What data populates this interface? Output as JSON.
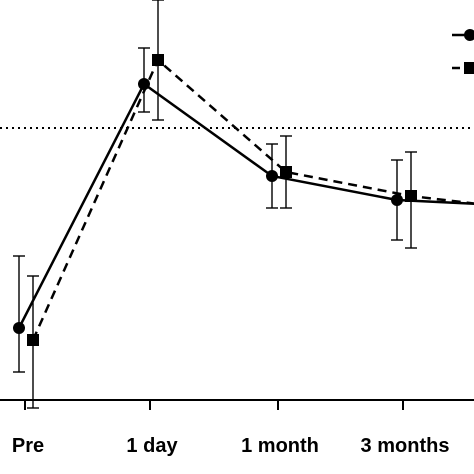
{
  "chart_data": {
    "type": "line",
    "title": "",
    "xlabel": "",
    "ylabel": "",
    "categories": [
      "Pre",
      "1 day",
      "1 month",
      "3 months"
    ],
    "ylim": [
      0,
      100
    ],
    "reference_line": {
      "y": 68,
      "style": "dotted"
    },
    "legend": {
      "placement": "top-right",
      "clipped": true
    },
    "series": [
      {
        "marker": "circle",
        "line_style": "solid",
        "color": "#000000",
        "values": [
          18,
          79,
          56,
          50
        ],
        "error": [
          [
            -11,
            18
          ],
          [
            -7,
            9
          ],
          [
            -8,
            8
          ],
          [
            -10,
            10
          ]
        ],
        "continues_right_value": 49
      },
      {
        "marker": "square",
        "line_style": "dashed",
        "color": "#000000",
        "values": [
          15,
          85,
          57,
          51
        ],
        "error": [
          [
            -17,
            16
          ],
          [
            -15,
            15
          ],
          [
            -9,
            9
          ],
          [
            -13,
            11
          ]
        ],
        "continues_right_value": 49
      }
    ]
  }
}
